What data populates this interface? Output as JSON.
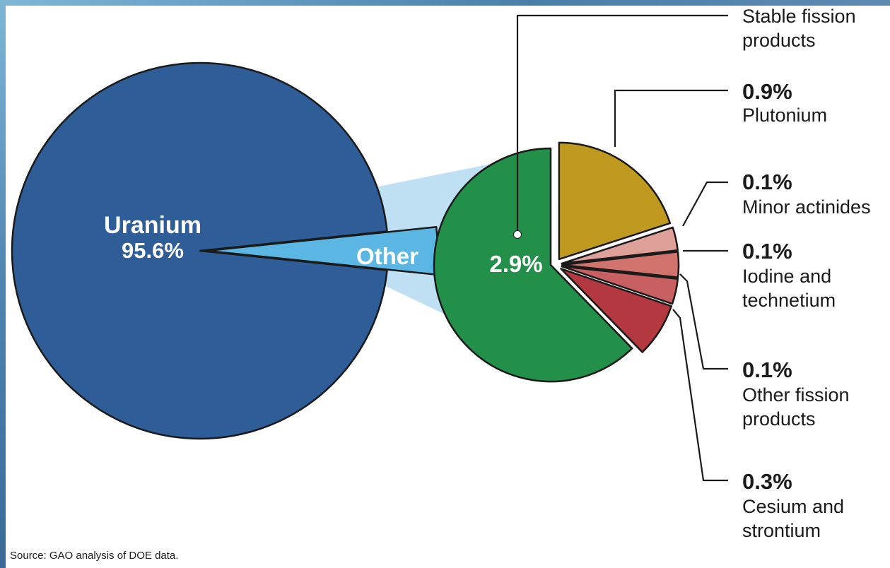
{
  "source": "Source: GAO analysis of DOE data.",
  "colors": {
    "uranium": "#2f5d98",
    "other_wedge": "#5cb6e4",
    "connector": "#bfe0f3",
    "stable_fission": "#23904a",
    "plutonium": "#c09a1f",
    "minor_actinides": "#e0a09a",
    "iodine_technetium": "#d3736e",
    "other_fission": "#c85f60",
    "cesium_strontium": "#b4383f"
  },
  "chart_data": [
    {
      "type": "pie",
      "title": "",
      "slices": [
        {
          "label": "Uranium",
          "value": 95.6,
          "value_label": "95.6%",
          "color_key": "uranium"
        },
        {
          "label": "Other",
          "value": 4.4,
          "value_label": "",
          "color_key": "other_wedge",
          "exploded": true
        }
      ]
    },
    {
      "type": "pie",
      "title": "",
      "breakdown_of": "Other",
      "slices": [
        {
          "label": "Stable fission products",
          "value": 2.9,
          "value_label": "2.9%",
          "color_key": "stable_fission"
        },
        {
          "label": "Plutonium",
          "value": 0.9,
          "value_label": "0.9%",
          "color_key": "plutonium"
        },
        {
          "label": "Minor actinides",
          "value": 0.1,
          "value_label": "0.1%",
          "color_key": "minor_actinides"
        },
        {
          "label": "Iodine and technetium",
          "value": 0.1,
          "value_label": "0.1%",
          "color_key": "iodine_technetium"
        },
        {
          "label": "Other fission products",
          "value": 0.1,
          "value_label": "0.1%",
          "color_key": "other_fission"
        },
        {
          "label": "Cesium and strontium",
          "value": 0.3,
          "value_label": "0.3%",
          "color_key": "cesium_strontium"
        }
      ]
    }
  ],
  "labels": {
    "uranium_name": "Uranium",
    "uranium_pct": "95.6%",
    "other_name": "Other",
    "stable_pct": "2.9%",
    "stable_line1": "Stable fission",
    "stable_line2": "products",
    "plutonium_pct": "0.9%",
    "plutonium_name": "Plutonium",
    "minor_pct": "0.1%",
    "minor_name": "Minor actinides",
    "iodine_pct": "0.1%",
    "iodine_line1": "Iodine and",
    "iodine_line2": "technetium",
    "otherfp_pct": "0.1%",
    "otherfp_line1": "Other fission",
    "otherfp_line2": "products",
    "cesium_pct": "0.3%",
    "cesium_line1": "Cesium and",
    "cesium_line2": "strontium"
  }
}
